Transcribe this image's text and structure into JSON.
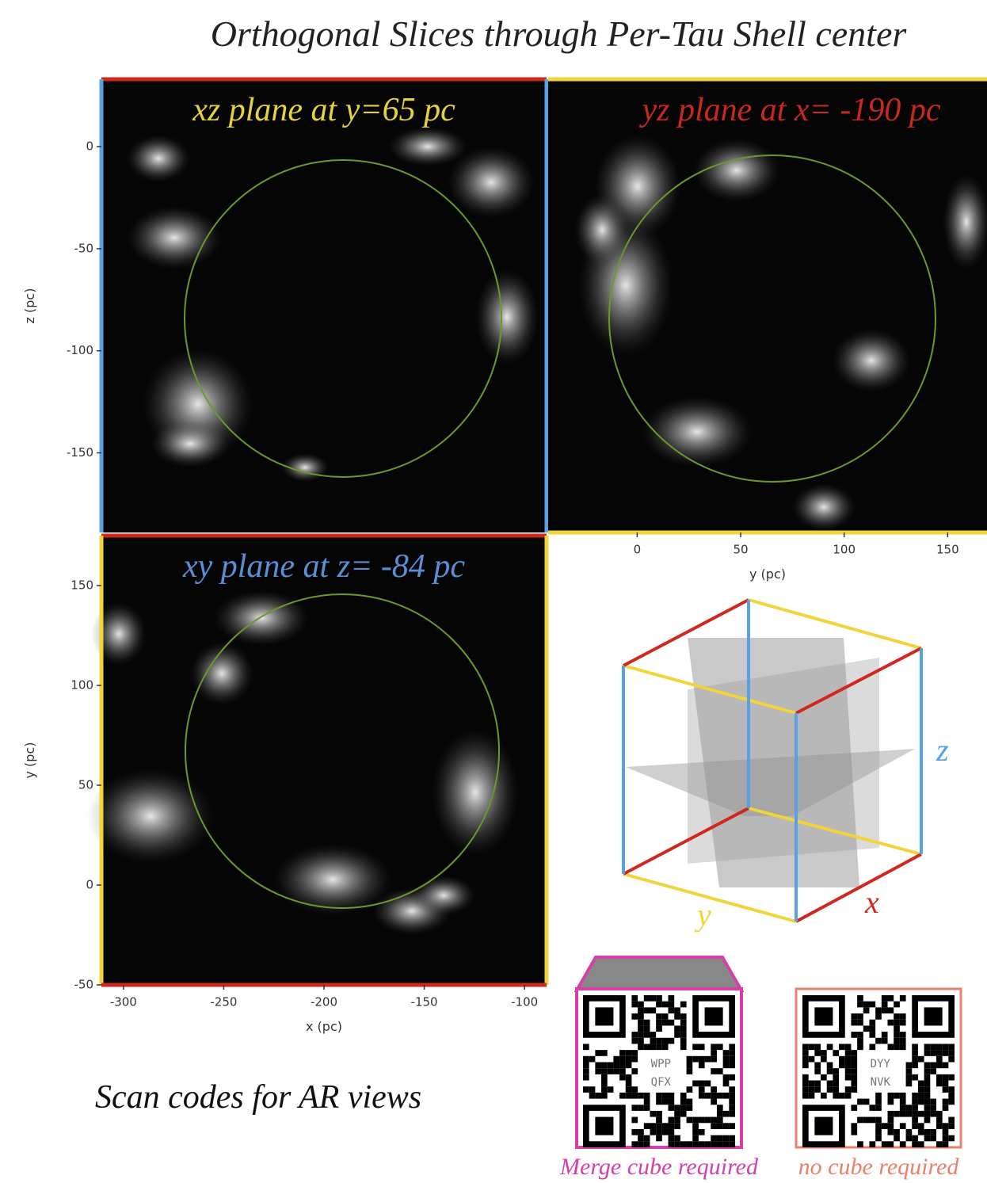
{
  "title": "Orthogonal Slices through Per-Tau Shell center",
  "chart_data": [
    {
      "type": "image",
      "title": "xz plane at y=65 pc",
      "title_color": "#e6d23a",
      "ylim": [
        -189,
        33
      ],
      "yticks": [
        0,
        -50,
        -100,
        -150
      ],
      "ylabel": "z (pc)"
    },
    {
      "type": "image",
      "title": "yz plane at x= -190 pc",
      "title_color": "#c8281e",
      "xlim": [
        -43,
        169
      ],
      "xticks": [
        0,
        50,
        100,
        150
      ],
      "xlabel": "y (pc)"
    },
    {
      "type": "image",
      "title": "xy plane at z= -84 pc",
      "title_color": "#5a8fd6",
      "xlim": [
        -311,
        -89
      ],
      "xticks": [
        -300,
        -250,
        -200,
        -150,
        -100
      ],
      "xlabel": "x (pc)",
      "ylim": [
        -50,
        175
      ],
      "yticks": [
        150,
        100,
        50,
        0,
        -50
      ],
      "ylabel": "y (pc)"
    }
  ],
  "cube_labels": {
    "x": "x",
    "y": "y",
    "z": "z"
  },
  "caption": "Scan codes for AR views",
  "qr_codes": [
    {
      "code_lines": [
        "WPP",
        "QFX"
      ],
      "label": "Merge cube required"
    },
    {
      "code_lines": [
        "DYY",
        "NVK"
      ],
      "label": "no cube required"
    }
  ]
}
